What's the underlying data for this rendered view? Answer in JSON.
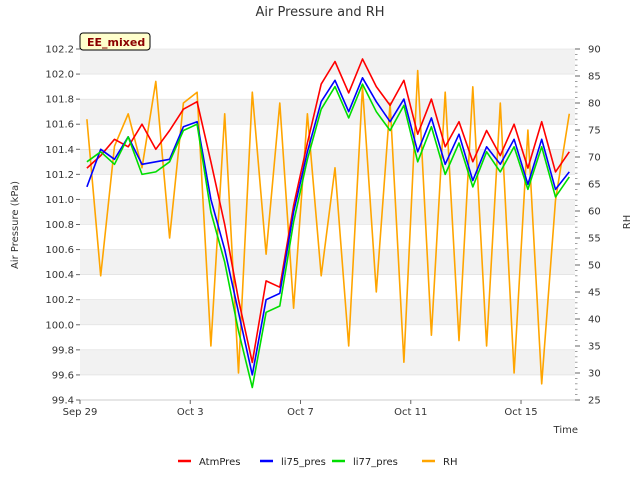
{
  "chart_data": {
    "type": "line",
    "title": "Air Pressure and RH",
    "badge": "EE_mixed",
    "xlabel": "Time",
    "ylabel": "Air Pressure (kPa)",
    "y2label": "RH",
    "ylim": [
      99.4,
      102.2
    ],
    "y2lim": [
      25,
      90
    ],
    "y_ticks": [
      "99.4",
      "99.6",
      "99.8",
      "100.0",
      "100.2",
      "100.4",
      "100.6",
      "100.8",
      "101.0",
      "101.2",
      "101.4",
      "101.6",
      "101.8",
      "102.0",
      "102.2"
    ],
    "y2_ticks": [
      "25",
      "30",
      "35",
      "40",
      "45",
      "50",
      "55",
      "60",
      "65",
      "70",
      "75",
      "80",
      "85",
      "90"
    ],
    "x_range": [
      "2023-09-29",
      "2023-10-16T23:00"
    ],
    "x_ticks": [
      {
        "date": "2023-09-29",
        "label": "Sep 29"
      },
      {
        "date": "2023-10-03",
        "label": "Oct 3"
      },
      {
        "date": "2023-10-07",
        "label": "Oct 7"
      },
      {
        "date": "2023-10-11",
        "label": "Oct 11"
      },
      {
        "date": "2023-10-15",
        "label": "Oct 15"
      }
    ],
    "grid": "horizontal bands",
    "legend_position": "bottom",
    "x": [
      "2023-09-29T06:00",
      "2023-09-29T18:00",
      "2023-09-30T06:00",
      "2023-09-30T18:00",
      "2023-10-01T06:00",
      "2023-10-01T18:00",
      "2023-10-02T06:00",
      "2023-10-02T18:00",
      "2023-10-03T06:00",
      "2023-10-03T18:00",
      "2023-10-04T06:00",
      "2023-10-04T18:00",
      "2023-10-05T06:00",
      "2023-10-05T18:00",
      "2023-10-06T06:00",
      "2023-10-06T18:00",
      "2023-10-07T06:00",
      "2023-10-07T18:00",
      "2023-10-08T06:00",
      "2023-10-08T18:00",
      "2023-10-09T06:00",
      "2023-10-09T18:00",
      "2023-10-10T06:00",
      "2023-10-10T18:00",
      "2023-10-11T06:00",
      "2023-10-11T18:00",
      "2023-10-12T06:00",
      "2023-10-12T18:00",
      "2023-10-13T06:00",
      "2023-10-13T18:00",
      "2023-10-14T06:00",
      "2023-10-14T18:00",
      "2023-10-15T06:00",
      "2023-10-15T18:00",
      "2023-10-16T06:00",
      "2023-10-16T18:00"
    ],
    "series": [
      {
        "name": "AtmPres",
        "color": "#ff0000",
        "axis": "left",
        "values": [
          101.25,
          101.35,
          101.48,
          101.42,
          101.6,
          101.4,
          101.55,
          101.72,
          101.78,
          101.3,
          100.8,
          100.2,
          99.7,
          100.35,
          100.3,
          100.95,
          101.45,
          101.92,
          102.1,
          101.85,
          102.12,
          101.9,
          101.75,
          101.95,
          101.52,
          101.8,
          101.42,
          101.62,
          101.3,
          101.55,
          101.35,
          101.6,
          101.25,
          101.62,
          101.22,
          101.38
        ]
      },
      {
        "name": "li75_pres",
        "color": "#0000ff",
        "axis": "left",
        "values": [
          101.1,
          101.4,
          101.32,
          101.5,
          101.28,
          101.3,
          101.32,
          101.58,
          101.62,
          101.0,
          100.6,
          100.1,
          99.6,
          100.2,
          100.25,
          100.9,
          101.38,
          101.78,
          101.95,
          101.7,
          101.97,
          101.78,
          101.62,
          101.8,
          101.38,
          101.65,
          101.28,
          101.52,
          101.15,
          101.42,
          101.28,
          101.48,
          101.12,
          101.48,
          101.08,
          101.22
        ]
      },
      {
        "name": "li77_pres",
        "color": "#00dd00",
        "axis": "left",
        "values": [
          101.3,
          101.38,
          101.28,
          101.5,
          101.2,
          101.22,
          101.3,
          101.55,
          101.6,
          100.9,
          100.5,
          99.95,
          99.5,
          100.1,
          100.15,
          100.82,
          101.32,
          101.72,
          101.9,
          101.65,
          101.92,
          101.7,
          101.55,
          101.75,
          101.3,
          101.58,
          101.2,
          101.45,
          101.1,
          101.38,
          101.22,
          101.42,
          101.08,
          101.42,
          101.02,
          101.18
        ]
      },
      {
        "name": "RH",
        "color": "#ffa500",
        "axis": "right",
        "values": [
          77,
          48,
          72,
          78,
          68,
          84,
          55,
          80,
          82,
          35,
          78,
          30,
          82,
          52,
          80,
          42,
          78,
          48,
          68,
          35,
          83,
          45,
          80,
          32,
          86,
          37,
          82,
          36,
          83,
          35,
          80,
          30,
          75,
          28,
          62,
          78
        ]
      }
    ]
  }
}
